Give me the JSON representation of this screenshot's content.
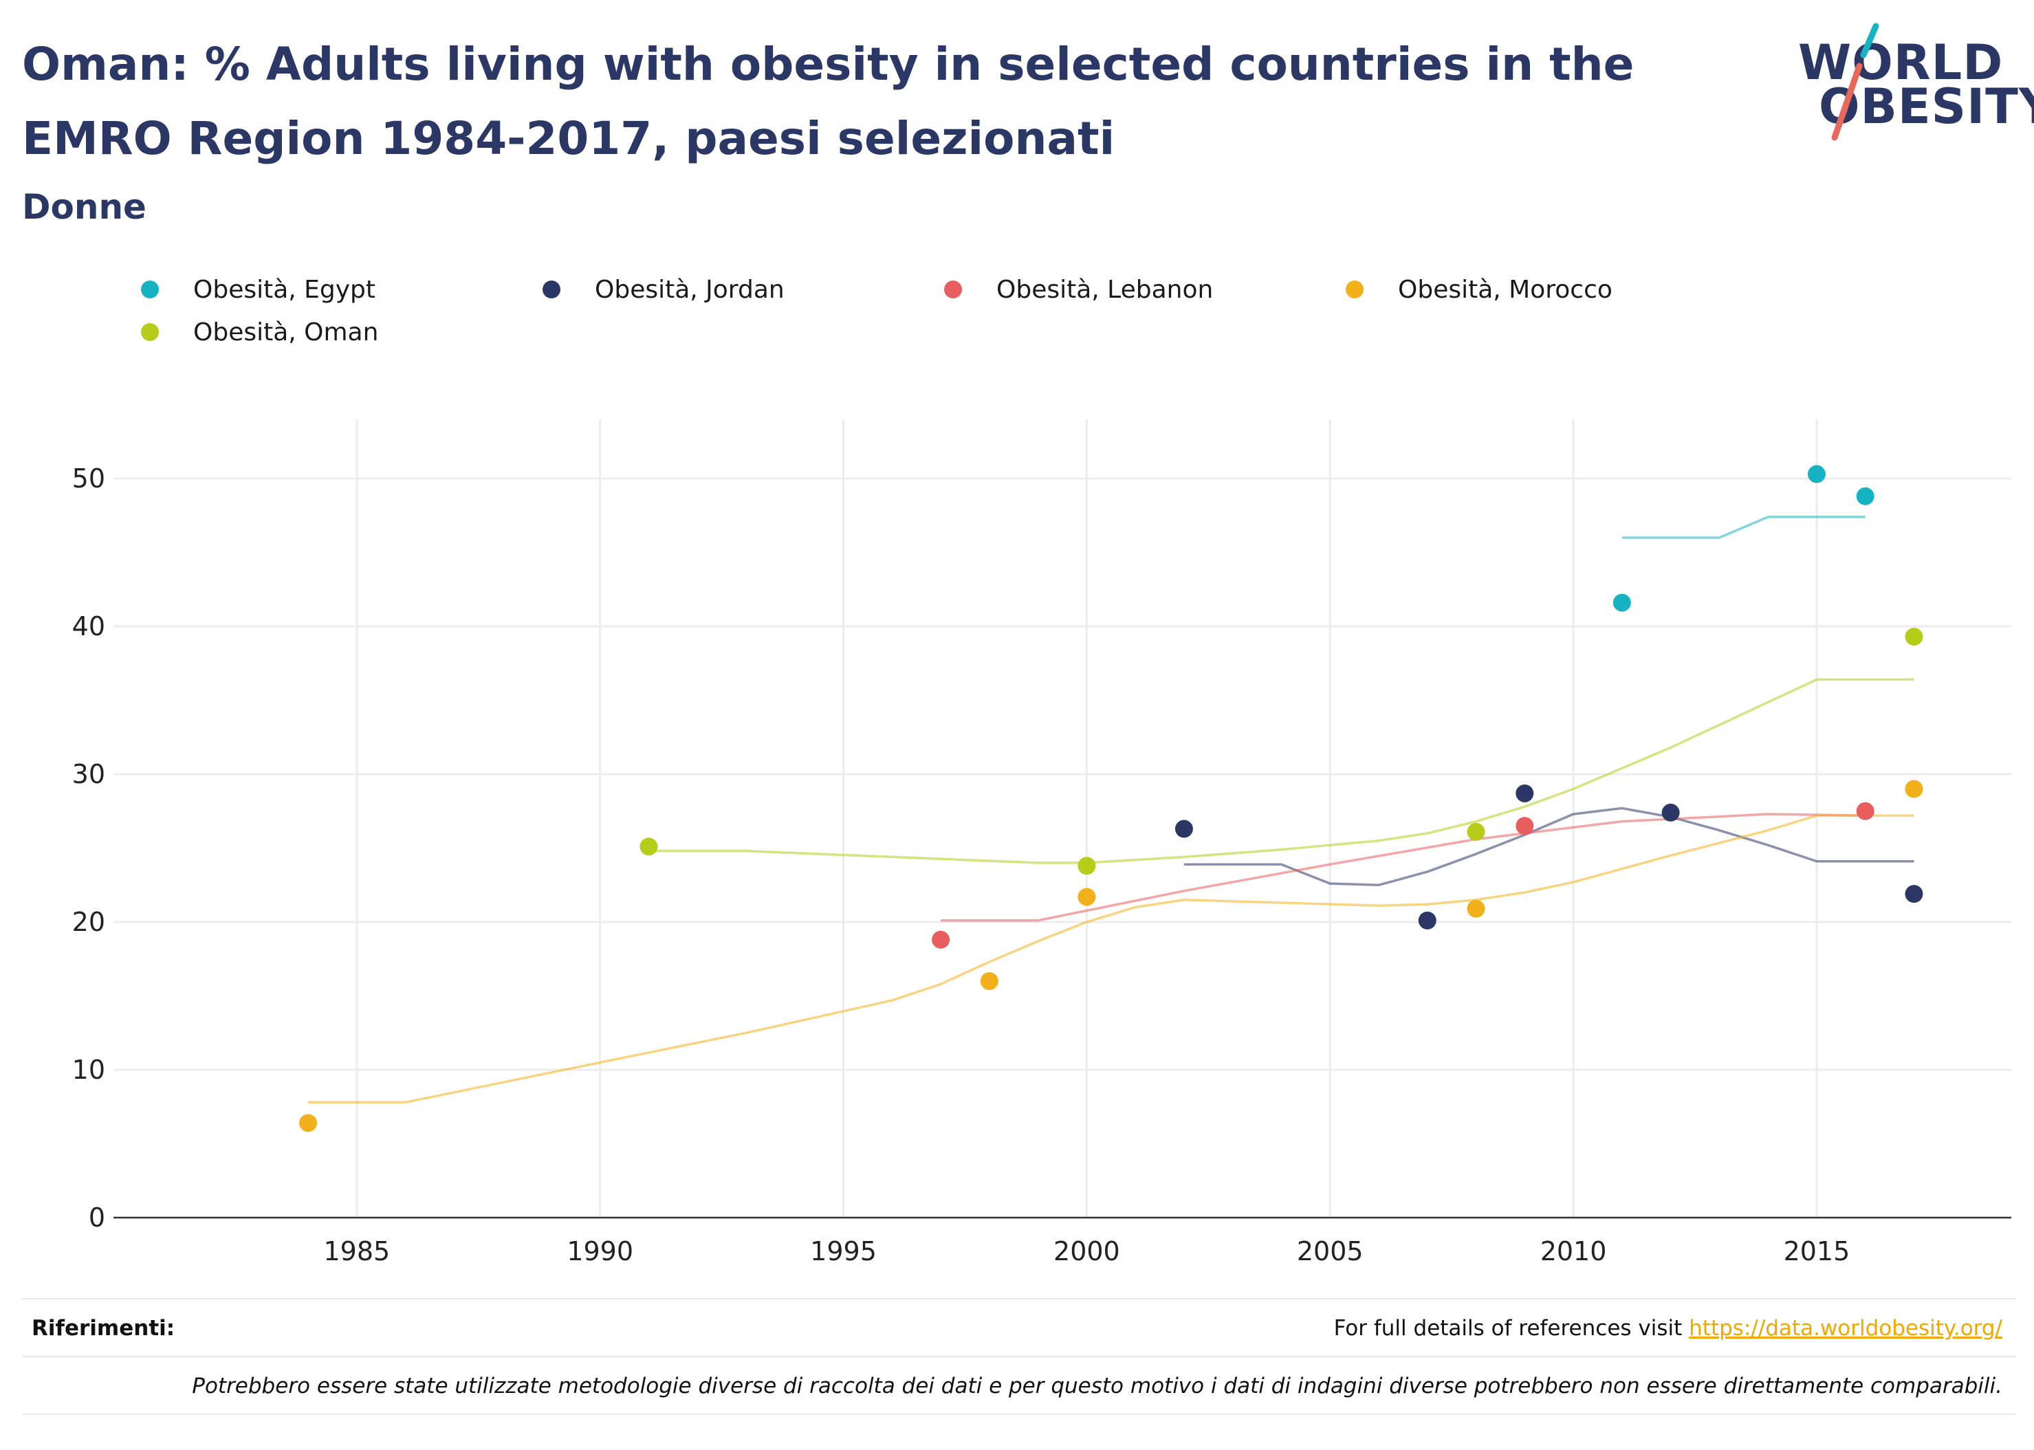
{
  "title": "Oman: % Adults living with obesity in selected countries in the EMRO Region 1984-2017, paesi selezionati",
  "subtitle": "Donne",
  "logo": {
    "line1": "WORLD",
    "line2": "OBESITY"
  },
  "colors": {
    "egypt": "#17b3c2",
    "jordan": "#2b3764",
    "lebanon": "#e85d5d",
    "morocco": "#f2b11a",
    "oman": "#b5cc18",
    "title": "#2b3764",
    "link": "#f0a800"
  },
  "chart_data": {
    "type": "scatter",
    "xlim": [
      1980,
      2019
    ],
    "ylim": [
      0,
      54
    ],
    "x_ticks": [
      1985,
      1990,
      1995,
      2000,
      2005,
      2010,
      2015
    ],
    "y_ticks": [
      0,
      10,
      20,
      30,
      40,
      50
    ],
    "grid": true,
    "legend_position": "top",
    "series": [
      {
        "name": "Obesità, Egypt",
        "color_key": "egypt",
        "points": [
          [
            2011,
            41.6
          ],
          [
            2015,
            50.3
          ],
          [
            2016,
            48.8
          ]
        ],
        "trend": [
          [
            2011,
            46.0
          ],
          [
            2013,
            46.0
          ],
          [
            2014,
            47.4
          ],
          [
            2016,
            47.4
          ]
        ]
      },
      {
        "name": "Obesità, Jordan",
        "color_key": "jordan",
        "points": [
          [
            2002,
            26.3
          ],
          [
            2007,
            20.1
          ],
          [
            2009,
            28.7
          ],
          [
            2012,
            27.4
          ],
          [
            2017,
            21.9
          ]
        ],
        "trend": [
          [
            2002,
            23.9
          ],
          [
            2004,
            23.9
          ],
          [
            2005,
            22.6
          ],
          [
            2006,
            22.5
          ],
          [
            2007,
            23.4
          ],
          [
            2008,
            24.6
          ],
          [
            2009,
            25.9
          ],
          [
            2010,
            27.3
          ],
          [
            2011,
            27.7
          ],
          [
            2012,
            27.1
          ],
          [
            2013,
            26.2
          ],
          [
            2014,
            25.2
          ],
          [
            2015,
            24.1
          ],
          [
            2017,
            24.1
          ]
        ]
      },
      {
        "name": "Obesità, Lebanon",
        "color_key": "lebanon",
        "points": [
          [
            1997,
            18.8
          ],
          [
            2009,
            26.5
          ],
          [
            2016,
            27.5
          ]
        ],
        "trend": [
          [
            1997,
            20.1
          ],
          [
            1999,
            20.1
          ],
          [
            2002,
            22.1
          ],
          [
            2005,
            23.9
          ],
          [
            2008,
            25.6
          ],
          [
            2011,
            26.8
          ],
          [
            2014,
            27.3
          ],
          [
            2016,
            27.2
          ]
        ]
      },
      {
        "name": "Obesità, Morocco",
        "color_key": "morocco",
        "points": [
          [
            1984,
            6.4
          ],
          [
            1998,
            16.0
          ],
          [
            2000,
            21.7
          ],
          [
            2008,
            20.9
          ],
          [
            2017,
            29.0
          ]
        ],
        "trend": [
          [
            1984,
            7.8
          ],
          [
            1986,
            7.8
          ],
          [
            1990,
            10.5
          ],
          [
            1993,
            12.5
          ],
          [
            1996,
            14.7
          ],
          [
            1997,
            15.8
          ],
          [
            1998,
            17.3
          ],
          [
            1999,
            18.7
          ],
          [
            2000,
            20.0
          ],
          [
            2001,
            21.0
          ],
          [
            2002,
            21.5
          ],
          [
            2004,
            21.3
          ],
          [
            2006,
            21.1
          ],
          [
            2007,
            21.2
          ],
          [
            2008,
            21.5
          ],
          [
            2009,
            22.0
          ],
          [
            2010,
            22.7
          ],
          [
            2012,
            24.5
          ],
          [
            2014,
            26.2
          ],
          [
            2015,
            27.2
          ],
          [
            2017,
            27.2
          ]
        ]
      },
      {
        "name": "Obesità, Oman",
        "color_key": "oman",
        "points": [
          [
            1991,
            25.1
          ],
          [
            2000,
            23.8
          ],
          [
            2008,
            26.1
          ],
          [
            2017,
            39.3
          ]
        ],
        "trend": [
          [
            1991,
            24.8
          ],
          [
            1993,
            24.8
          ],
          [
            1999,
            24.0
          ],
          [
            2000,
            24.0
          ],
          [
            2002,
            24.4
          ],
          [
            2004,
            24.9
          ],
          [
            2006,
            25.5
          ],
          [
            2007,
            26.0
          ],
          [
            2008,
            26.8
          ],
          [
            2009,
            27.8
          ],
          [
            2010,
            29.0
          ],
          [
            2012,
            31.8
          ],
          [
            2015,
            36.4
          ],
          [
            2017,
            36.4
          ]
        ]
      }
    ]
  },
  "footer": {
    "refs_label": "Riferimenti:",
    "refs_text": "For full details of references visit ",
    "refs_link": "https://data.worldobesity.org/",
    "note": "Potrebbero essere state utilizzate metodologie diverse di raccolta dei dati e per questo motivo i dati di indagini diverse potrebbero non essere direttamente comparabili."
  }
}
